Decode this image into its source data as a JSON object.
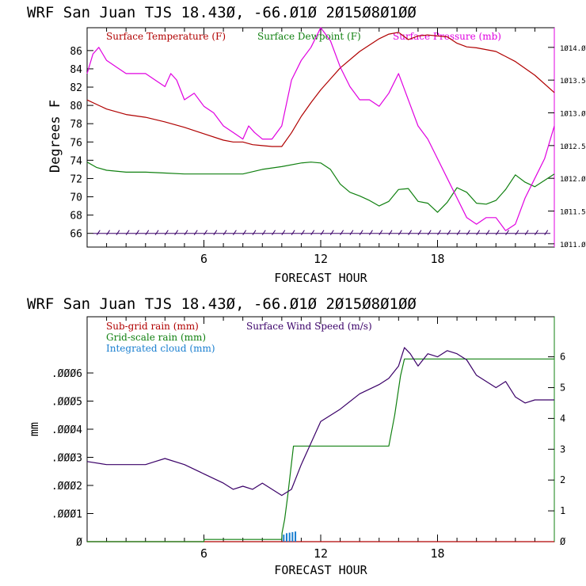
{
  "chart_data": [
    {
      "type": "line",
      "title": "WRF  San Juan TJS  18.43Ø, -66.Ø1Ø  2Ø15Ø8Ø1ØØ",
      "xlabel": "FORECAST HOUR",
      "ylabel": "Degrees F",
      "xlim": [
        0,
        24
      ],
      "x_ticks": [
        6,
        12,
        18
      ],
      "x_tick_labels": [
        "6",
        "12",
        "18"
      ],
      "ylim": [
        64.5,
        88.5
      ],
      "y_ticks": [
        66,
        68,
        70,
        72,
        74,
        76,
        78,
        80,
        82,
        84,
        86
      ],
      "y_tick_labels": [
        "66",
        "68",
        "70",
        "72",
        "74",
        "76",
        "78",
        "80",
        "82",
        "84",
        "86"
      ],
      "y2lim": [
        1010.95,
        1014.3
      ],
      "y2_ticks": [
        1011.0,
        1011.5,
        1012.0,
        1012.5,
        1013.0,
        1013.5,
        1014.0
      ],
      "y2_tick_labels": [
        "1Ø11.Ø",
        "1Ø11.5",
        "1Ø12.Ø",
        "1Ø12.5",
        "1Ø13.Ø",
        "1Ø13.5",
        "1Ø14.Ø"
      ],
      "legend": [
        "Surface Temperature (F)",
        "Surface Dewpoint (F)",
        "Surface Pressure (mb)"
      ],
      "legend_position": "top",
      "grid": false,
      "series": [
        {
          "name": "Surface Temperature (F)",
          "color": "#b00000",
          "axis": "left",
          "x": [
            0,
            1,
            2,
            3,
            4,
            5,
            6,
            7,
            7.5,
            8,
            8.5,
            9,
            9.5,
            10,
            10.5,
            11,
            11.5,
            12,
            12.5,
            13,
            14,
            15,
            15.5,
            16,
            16.5,
            17,
            17.5,
            18,
            18.5,
            19,
            19.5,
            20,
            21,
            22,
            23,
            24
          ],
          "y": [
            80.6,
            79.6,
            79.0,
            78.7,
            78.2,
            77.6,
            76.9,
            76.2,
            76.0,
            76.0,
            75.7,
            75.6,
            75.5,
            75.5,
            77.0,
            78.8,
            80.3,
            81.7,
            82.9,
            84.1,
            85.9,
            87.3,
            87.8,
            88.0,
            87.2,
            87.6,
            87.7,
            87.6,
            87.5,
            86.8,
            86.4,
            86.3,
            85.9,
            84.8,
            83.3,
            81.4
          ]
        },
        {
          "name": "Surface Dewpoint (F)",
          "color": "#108010",
          "axis": "left",
          "x": [
            0,
            0.5,
            1,
            2,
            3,
            4,
            5,
            6,
            7,
            8,
            9,
            10,
            11,
            11.5,
            12,
            12.5,
            13,
            13.5,
            14,
            14.5,
            15,
            15.5,
            16,
            16.5,
            17,
            17.5,
            18,
            18.5,
            19,
            19.5,
            20,
            20.5,
            21,
            21.5,
            22,
            22.5,
            23,
            23.5,
            24
          ],
          "y": [
            73.8,
            73.2,
            72.9,
            72.7,
            72.7,
            72.6,
            72.5,
            72.5,
            72.5,
            72.5,
            73.0,
            73.3,
            73.7,
            73.8,
            73.7,
            73.0,
            71.4,
            70.5,
            70.1,
            69.6,
            69.0,
            69.5,
            70.8,
            70.9,
            69.5,
            69.3,
            68.3,
            69.4,
            71.0,
            70.5,
            69.3,
            69.2,
            69.6,
            70.8,
            72.4,
            71.6,
            71.1,
            71.8,
            72.5
          ]
        },
        {
          "name": "Surface Pressure (mb)",
          "color": "#e000e0",
          "axis": "right",
          "x": [
            0,
            0.3,
            0.6,
            1,
            1.5,
            2,
            2.5,
            3,
            3.5,
            4,
            4.3,
            4.6,
            5,
            5.5,
            6,
            6.5,
            7,
            7.5,
            8,
            8.3,
            8.6,
            9,
            9.5,
            10,
            10.5,
            11,
            11.5,
            12,
            12.5,
            13,
            13.5,
            14,
            14.5,
            15,
            15.5,
            16,
            16.5,
            17,
            17.5,
            18,
            18.5,
            19,
            19.5,
            20,
            20.5,
            21,
            21.5,
            22,
            22.5,
            23,
            23.5,
            24
          ],
          "y": [
            1013.6,
            1013.9,
            1014.0,
            1013.8,
            1013.7,
            1013.6,
            1013.6,
            1013.6,
            1013.5,
            1013.4,
            1013.6,
            1013.5,
            1013.2,
            1013.3,
            1013.1,
            1013.0,
            1012.8,
            1012.7,
            1012.6,
            1012.8,
            1012.7,
            1012.6,
            1012.6,
            1012.8,
            1013.5,
            1013.8,
            1014.0,
            1014.3,
            1014.1,
            1013.7,
            1013.4,
            1013.2,
            1013.2,
            1013.1,
            1013.3,
            1013.6,
            1013.2,
            1012.8,
            1012.6,
            1012.3,
            1012.0,
            1011.7,
            1011.4,
            1011.3,
            1011.4,
            1011.4,
            1011.2,
            1011.3,
            1011.7,
            1012.0,
            1012.3,
            1012.8
          ]
        }
      ],
      "wind_barbs": "dark purple wind barbs along the 66°F line, one per forecast step"
    },
    {
      "type": "line",
      "title": "WRF  San Juan TJS  18.43Ø, -66.Ø1Ø  2Ø15Ø8Ø1ØØ",
      "xlabel": "FORECAST HOUR",
      "ylabel": "mm",
      "xlim": [
        0,
        24
      ],
      "x_ticks": [
        6,
        12,
        18
      ],
      "x_tick_labels": [
        "6",
        "12",
        "18"
      ],
      "ylim": [
        0,
        0.0008
      ],
      "y_ticks": [
        0,
        0.0001,
        0.0002,
        0.0003,
        0.0004,
        0.0005,
        0.0006
      ],
      "y_tick_labels": [
        "Ø",
        ".ØØØ1",
        ".ØØØ2",
        ".ØØØ3",
        ".ØØØ4",
        ".ØØØ5",
        ".ØØØ6"
      ],
      "y2lim": [
        0,
        7.3
      ],
      "y2_ticks": [
        0,
        1,
        2,
        3,
        4,
        5,
        6
      ],
      "y2_tick_labels": [
        "Ø",
        "1",
        "2",
        "3",
        "4",
        "5",
        "6"
      ],
      "legend": [
        "Sub-grid rain (mm)",
        "Grid-scale rain (mm)",
        "Integrated cloud (mm)",
        "Surface Wind Speed (m/s)"
      ],
      "legend_position": "top-left",
      "grid": false,
      "series": [
        {
          "name": "Sub-grid rain (mm)",
          "color": "#b00000",
          "axis": "left",
          "x": [
            0,
            24
          ],
          "y": [
            0,
            0
          ]
        },
        {
          "name": "Grid-scale rain (mm)",
          "color": "#108010",
          "axis": "left",
          "step": true,
          "x": [
            0,
            6,
            6.01,
            10.0,
            10.01,
            10.15,
            10.3,
            10.45,
            10.6,
            11.0,
            15.5,
            15.8,
            16.1,
            16.3,
            24
          ],
          "y": [
            0,
            0,
            8e-06,
            8e-06,
            3e-05,
            8e-05,
            0.00016,
            0.00025,
            0.00034,
            0.00034,
            0.00034,
            0.00045,
            0.00059,
            0.00065,
            0.00065
          ]
        },
        {
          "name": "Integrated cloud (mm)",
          "color": "#1a7fd0",
          "axis": "left",
          "bars": true,
          "x": [
            10.1,
            10.25,
            10.4,
            10.55,
            10.7
          ],
          "y": [
            2.5e-05,
            3e-05,
            3.2e-05,
            3.4e-05,
            3.6e-05
          ]
        },
        {
          "name": "Surface Wind Speed (m/s)",
          "color": "#3a0068",
          "axis": "right",
          "x": [
            0,
            1,
            2,
            3,
            3.5,
            4,
            5,
            6,
            7,
            7.5,
            8,
            8.5,
            9,
            10,
            10.5,
            11,
            11.5,
            12,
            13,
            14,
            15,
            15.5,
            16,
            16.3,
            16.6,
            17,
            17.5,
            18,
            18.5,
            19,
            19.5,
            20,
            21,
            21.5,
            22,
            22.5,
            23,
            24
          ],
          "y": [
            2.6,
            2.5,
            2.5,
            2.5,
            2.6,
            2.7,
            2.5,
            2.2,
            1.9,
            1.7,
            1.8,
            1.7,
            1.9,
            1.5,
            1.7,
            2.5,
            3.2,
            3.9,
            4.3,
            4.8,
            5.1,
            5.3,
            5.7,
            6.3,
            6.1,
            5.7,
            6.1,
            6.0,
            6.2,
            6.1,
            5.9,
            5.4,
            5.0,
            5.2,
            4.7,
            4.5,
            4.6,
            4.6
          ]
        }
      ]
    }
  ]
}
